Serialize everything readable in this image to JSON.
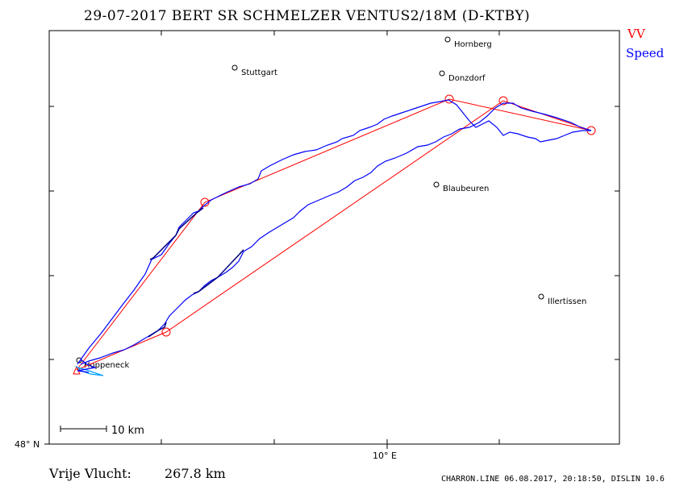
{
  "title": "29-07-2017    BERT SR SCHMELZER    VENTUS2/18M (D-KTBY)",
  "legend": {
    "vv": {
      "label": "VV",
      "color": "#ff0000"
    },
    "speed": {
      "label": "Speed",
      "color": "#0000ff"
    }
  },
  "towns": [
    {
      "name": "Hornberg"
    },
    {
      "name": "Stuttgart"
    },
    {
      "name": "Donzdorf"
    },
    {
      "name": "Blaubeuren"
    },
    {
      "name": "Illertissen"
    },
    {
      "name": "Hoppeneck"
    }
  ],
  "axis": {
    "lat_label": "48° N",
    "lon_label": "10° E"
  },
  "scale_bar": {
    "label": "10  km"
  },
  "distance": {
    "label": "Vrije Vlucht:",
    "value": "267.8 km"
  },
  "footer": "CHARRON.LINE 06.08.2017, 20:18:50, DISLIN 10.6",
  "colors": {
    "task_line": "#ff0000",
    "track_line": "#0000ff",
    "track_dark": "#000080",
    "frame": "#000000"
  }
}
